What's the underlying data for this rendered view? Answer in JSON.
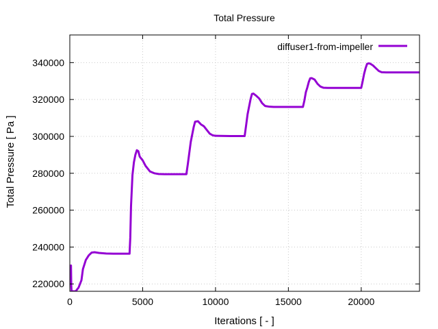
{
  "chart_data": {
    "type": "line",
    "title": "Total Pressure",
    "xlabel": "Iterations [ - ]",
    "ylabel": "Total Pressure [ Pa ]",
    "xlim": [
      0,
      24000
    ],
    "ylim": [
      216000,
      355000
    ],
    "xticks": [
      0,
      5000,
      10000,
      15000,
      20000
    ],
    "yticks": [
      220000,
      240000,
      260000,
      280000,
      300000,
      320000,
      340000
    ],
    "grid": true,
    "legend_position": "top-right",
    "series": [
      {
        "name": "diffuser1-from-impeller",
        "color": "#9400d3",
        "x": [
          80,
          100,
          120,
          150,
          400,
          600,
          700,
          800,
          900,
          1100,
          1300,
          1500,
          1700,
          2000,
          2500,
          3000,
          3500,
          4100,
          4150,
          4200,
          4300,
          4400,
          4500,
          4600,
          4700,
          4800,
          4900,
          5000,
          5200,
          5500,
          5800,
          6100,
          6500,
          7000,
          7500,
          8000,
          8100,
          8200,
          8300,
          8400,
          8500,
          8600,
          8800,
          9000,
          9200,
          9400,
          9600,
          9800,
          10000,
          11000,
          12000,
          12100,
          12200,
          12300,
          12400,
          12500,
          12600,
          12800,
          13000,
          13200,
          13400,
          13700,
          14000,
          15000,
          16000,
          16100,
          16200,
          16300,
          16400,
          16500,
          16600,
          16800,
          17000,
          17200,
          17400,
          17700,
          18000,
          19000,
          20000,
          20100,
          20200,
          20300,
          20400,
          20500,
          20600,
          20800,
          21000,
          21200,
          21400,
          21700,
          22000,
          23000,
          24000
        ],
        "values": [
          230000,
          219000,
          216000,
          216000,
          216000,
          218000,
          220000,
          222000,
          228000,
          233000,
          235500,
          237000,
          237200,
          236800,
          236500,
          236400,
          236400,
          236400,
          245000,
          262000,
          279000,
          286000,
          290000,
          292500,
          292000,
          289000,
          288000,
          287000,
          284000,
          281000,
          280000,
          279600,
          279500,
          279500,
          279500,
          279500,
          285000,
          291000,
          297000,
          301000,
          305000,
          308000,
          308200,
          306500,
          305500,
          303500,
          301500,
          300600,
          300300,
          300200,
          300200,
          306000,
          312000,
          316000,
          320000,
          323000,
          323200,
          322000,
          320500,
          318000,
          316500,
          316100,
          316000,
          316000,
          316000,
          319500,
          324000,
          326500,
          329500,
          331500,
          331600,
          330800,
          328500,
          327000,
          326400,
          326300,
          326300,
          326300,
          326300,
          330000,
          334000,
          337000,
          339300,
          339600,
          339500,
          338500,
          337000,
          335500,
          334800,
          334700,
          334700,
          334700,
          334700
        ]
      }
    ]
  }
}
